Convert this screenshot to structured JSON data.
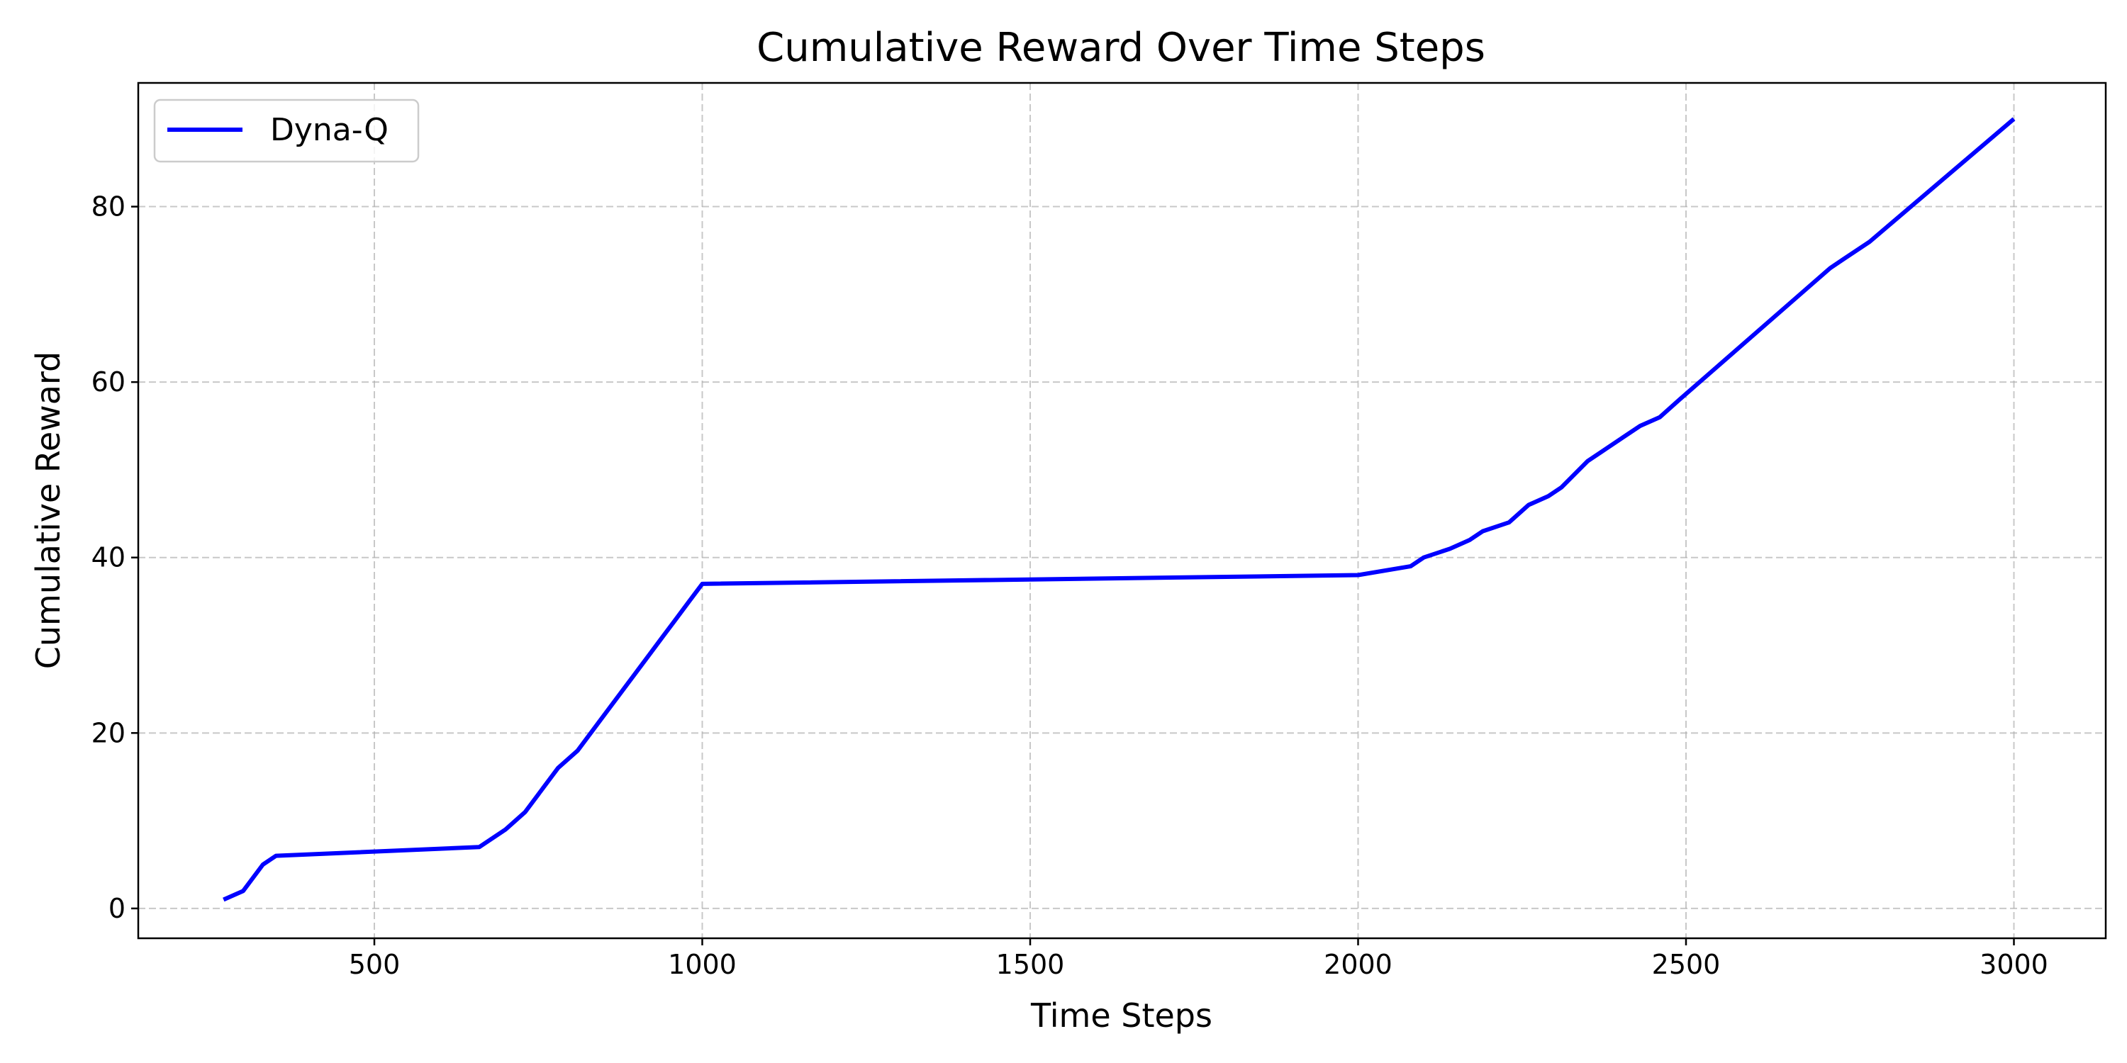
{
  "chart_data": {
    "type": "line",
    "title": "Cumulative Reward Over Time Steps",
    "xlabel": "Time Steps",
    "ylabel": "Cumulative Reward",
    "xlim": [
      140,
      3140
    ],
    "ylim": [
      -3.4,
      94.1
    ],
    "xticks": [
      500,
      1000,
      1500,
      2000,
      2500,
      3000
    ],
    "yticks": [
      0,
      20,
      40,
      60,
      80
    ],
    "grid": true,
    "grid_style": "dashed",
    "legend_position": "top-left",
    "series": [
      {
        "name": "Dyna-Q",
        "color": "#0000ff",
        "x": [
          270,
          300,
          330,
          350,
          660,
          700,
          730,
          780,
          810,
          840,
          880,
          900,
          920,
          940,
          960,
          980,
          1000,
          2000,
          2080,
          2100,
          2140,
          2170,
          2190,
          2230,
          2260,
          2290,
          2310,
          2350,
          2370,
          2430,
          2460,
          2490,
          2720,
          2740,
          2780,
          3000
        ],
        "y": [
          1,
          2,
          5,
          6,
          7,
          9,
          11,
          16,
          18,
          21,
          25,
          27,
          29,
          31,
          33,
          35,
          37,
          38,
          39,
          40,
          41,
          42,
          43,
          44,
          46,
          47,
          48,
          51,
          52,
          55,
          56,
          58,
          73,
          74,
          76,
          90
        ]
      }
    ]
  }
}
